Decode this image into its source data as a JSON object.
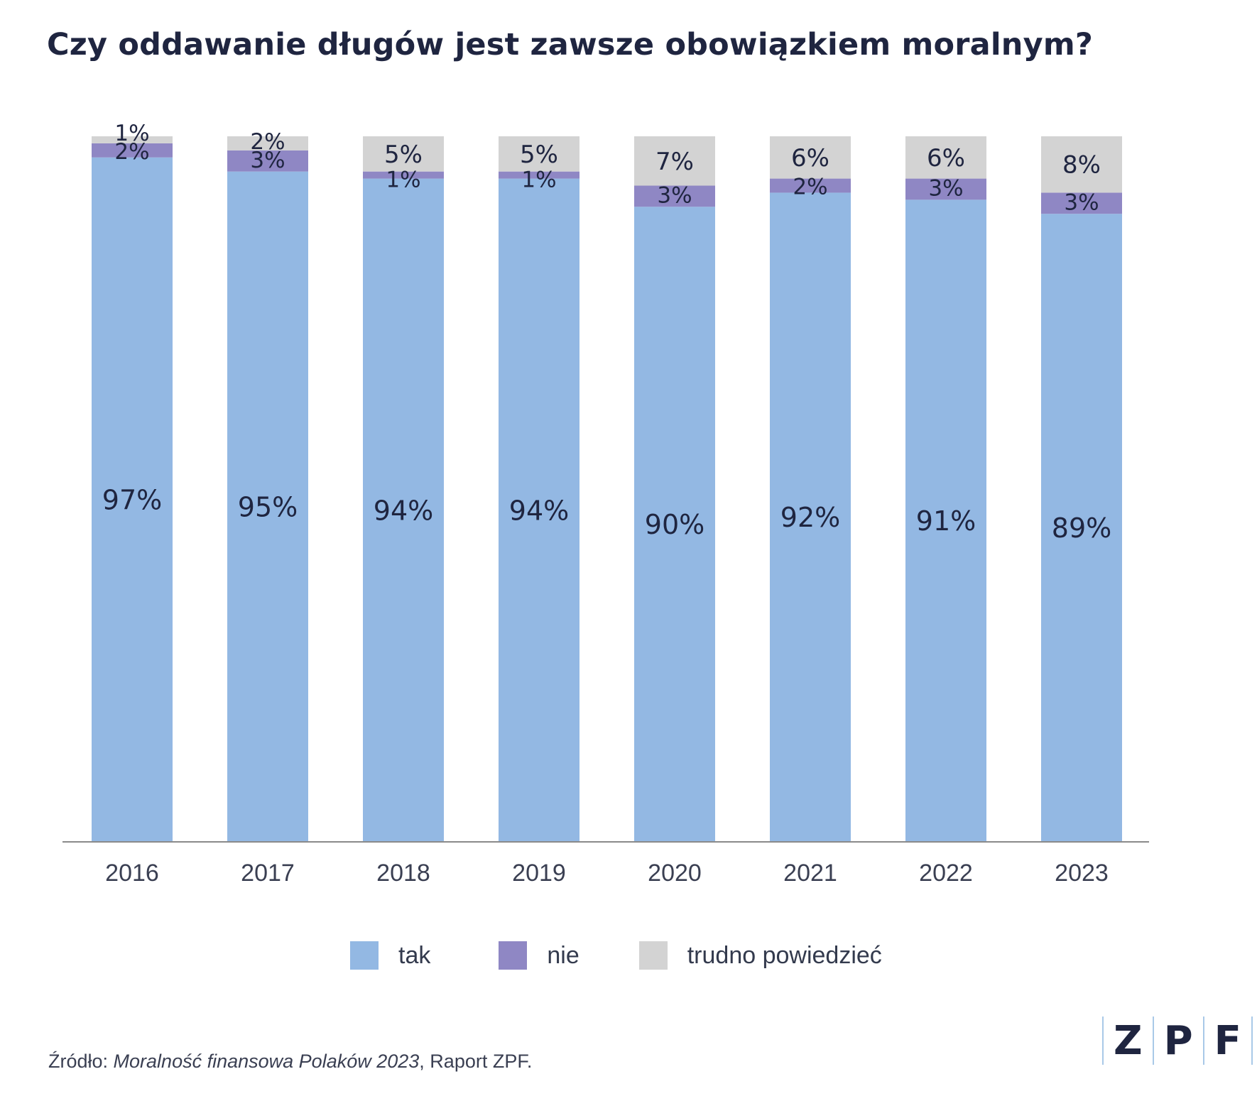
{
  "title": "Czy oddawanie długów jest zawsze obowiązkiem moralnym?",
  "chart_data": {
    "type": "bar",
    "stacked": true,
    "categories": [
      "2016",
      "2017",
      "2018",
      "2019",
      "2020",
      "2021",
      "2022",
      "2023"
    ],
    "series": [
      {
        "name": "tak",
        "values": [
          97,
          95,
          94,
          94,
          90,
          92,
          91,
          89
        ],
        "color": "#93b8e3"
      },
      {
        "name": "nie",
        "values": [
          2,
          3,
          1,
          1,
          3,
          2,
          3,
          3
        ],
        "color": "#8f87c4"
      },
      {
        "name": "trudno powiedzieć",
        "values": [
          1,
          2,
          5,
          5,
          7,
          6,
          6,
          8
        ],
        "color": "#d3d3d3"
      }
    ],
    "data_labels": {
      "tak": [
        "97%",
        "95%",
        "94%",
        "94%",
        "90%",
        "92%",
        "91%",
        "89%"
      ],
      "nie": [
        "2%",
        "3%",
        "1%",
        "1%",
        "3%",
        "2%",
        "3%",
        "3%"
      ],
      "trudno powiedzieć": [
        "1%",
        "2%",
        "5%",
        "5%",
        "7%",
        "6%",
        "6%",
        "8%"
      ]
    },
    "ylim": [
      0,
      100
    ],
    "grid": false,
    "legend_position": "bottom-center",
    "xlabel": "",
    "ylabel": ""
  },
  "legend": {
    "tak": "tak",
    "nie": "nie",
    "trudno": "trudno powiedzieć"
  },
  "source": {
    "prefix": "Źródło: ",
    "italic": "Moralność finansowa Polaków 2023",
    "suffix": ", Raport ZPF."
  },
  "logo": {
    "l1": "Z",
    "l2": "P",
    "l3": "F"
  },
  "colors": {
    "tak": "#93b8e3",
    "nie": "#8f87c4",
    "trudno": "#d3d3d3",
    "text": "#1f2540",
    "axis": "#8a8a8a"
  }
}
